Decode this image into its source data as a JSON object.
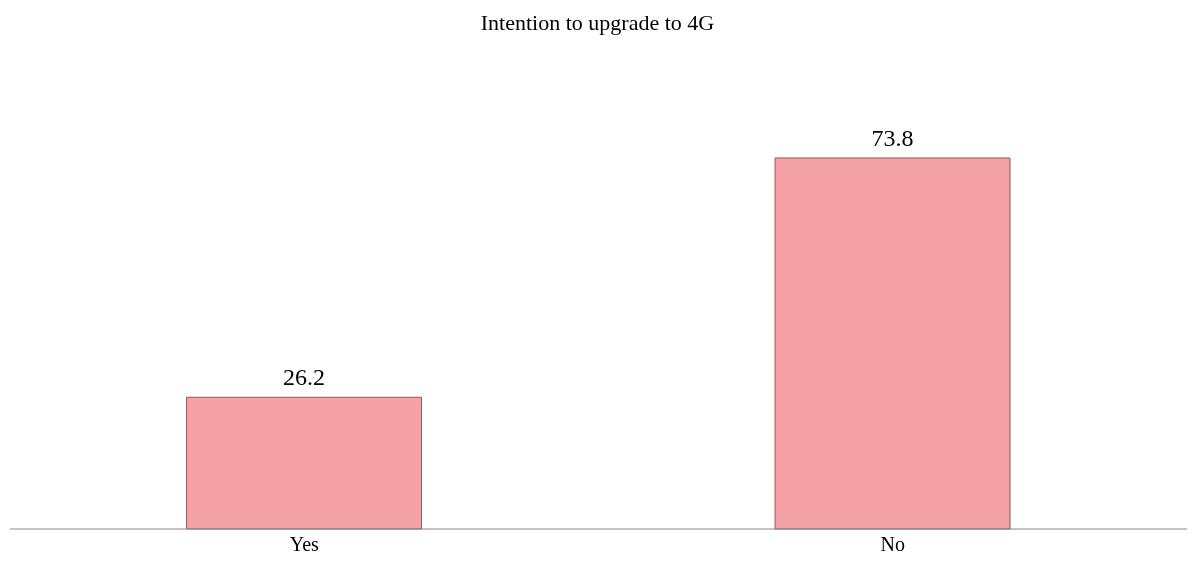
{
  "chart_data": {
    "type": "bar",
    "title": "Intention to upgrade to 4G",
    "categories": [
      "Yes",
      "No"
    ],
    "values": [
      26.2,
      73.8
    ],
    "color": "#f4a2a5",
    "data_labels": true
  }
}
